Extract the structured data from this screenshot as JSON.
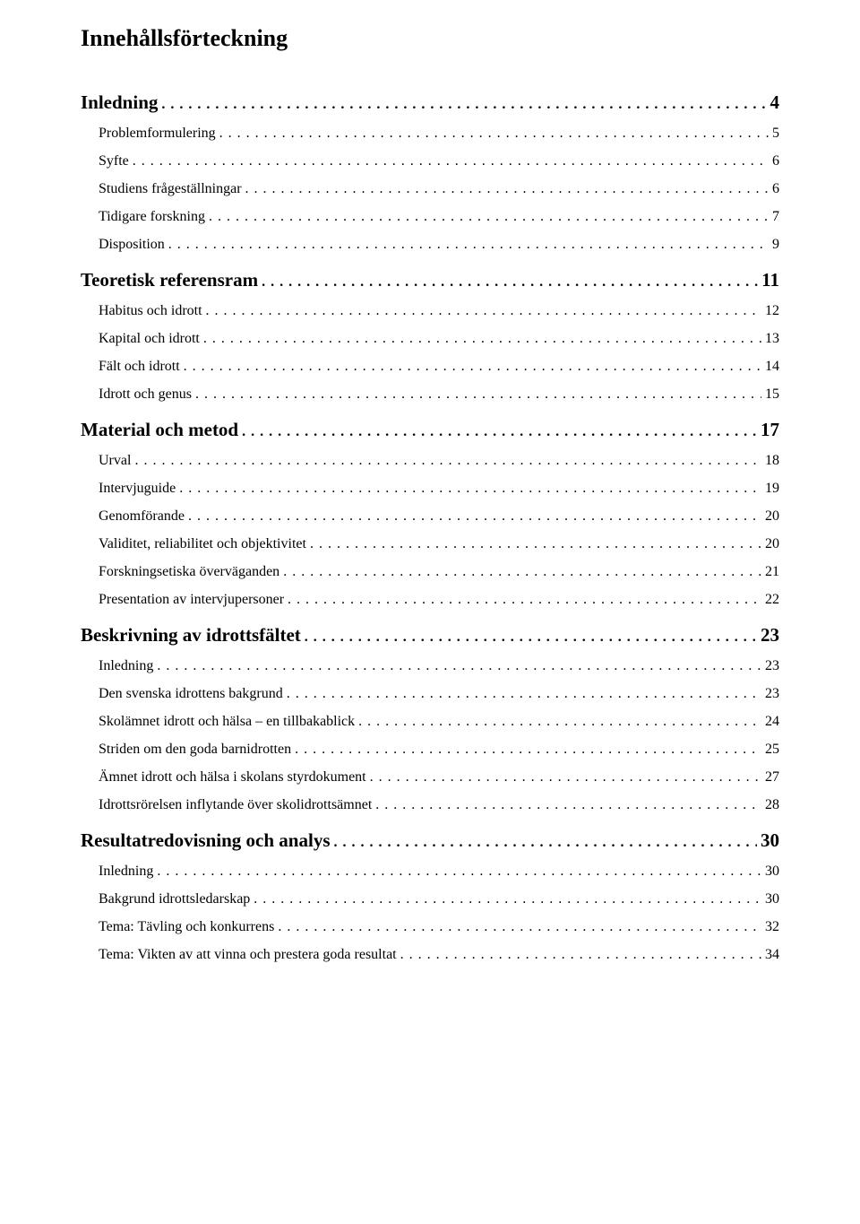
{
  "title": "Innehållsförteckning",
  "typography": {
    "title_fontsize": 26,
    "lvl1_fontsize": 21,
    "lvl2_fontsize": 16,
    "font_family": "Times New Roman",
    "text_color": "#000000",
    "background_color": "#ffffff"
  },
  "entries": [
    {
      "label": "Inledning",
      "page": "4",
      "level": 1
    },
    {
      "label": "Problemformulering",
      "page": "5",
      "level": 2
    },
    {
      "label": "Syfte",
      "page": "6",
      "level": 2
    },
    {
      "label": "Studiens frågeställningar",
      "page": "6",
      "level": 2
    },
    {
      "label": "Tidigare forskning",
      "page": "7",
      "level": 2
    },
    {
      "label": "Disposition",
      "page": "9",
      "level": 2
    },
    {
      "label": "Teoretisk referensram",
      "page": "11",
      "level": 1
    },
    {
      "label": "Habitus och idrott",
      "page": "12",
      "level": 2
    },
    {
      "label": "Kapital och idrott",
      "page": "13",
      "level": 2
    },
    {
      "label": "Fält och idrott",
      "page": "14",
      "level": 2
    },
    {
      "label": "Idrott och genus",
      "page": "15",
      "level": 2
    },
    {
      "label": "Material och metod",
      "page": "17",
      "level": 1
    },
    {
      "label": "Urval",
      "page": "18",
      "level": 2
    },
    {
      "label": "Intervjuguide",
      "page": "19",
      "level": 2
    },
    {
      "label": "Genomförande",
      "page": "20",
      "level": 2
    },
    {
      "label": "Validitet, reliabilitet och objektivitet",
      "page": "20",
      "level": 2
    },
    {
      "label": "Forskningsetiska överväganden",
      "page": "21",
      "level": 2
    },
    {
      "label": "Presentation av intervjupersoner",
      "page": "22",
      "level": 2
    },
    {
      "label": "Beskrivning av idrottsfältet",
      "page": "23",
      "level": 1
    },
    {
      "label": "Inledning",
      "page": "23",
      "level": 2
    },
    {
      "label": "Den svenska idrottens bakgrund",
      "page": "23",
      "level": 2
    },
    {
      "label": "Skolämnet idrott och hälsa – en tillbakablick",
      "page": "24",
      "level": 2
    },
    {
      "label": "Striden om den goda barnidrotten",
      "page": "25",
      "level": 2
    },
    {
      "label": "Ämnet idrott och hälsa i skolans styrdokument",
      "page": "27",
      "level": 2
    },
    {
      "label": "Idrottsrörelsen inflytande över skolidrottsämnet",
      "page": "28",
      "level": 2
    },
    {
      "label": "Resultatredovisning och analys",
      "page": "30",
      "level": 1
    },
    {
      "label": "Inledning",
      "page": "30",
      "level": 2
    },
    {
      "label": "Bakgrund idrottsledarskap",
      "page": "30",
      "level": 2
    },
    {
      "label": "Tema: Tävling och konkurrens",
      "page": "32",
      "level": 2
    },
    {
      "label": "Tema: Vikten av att vinna och prestera goda resultat",
      "page": "34",
      "level": 2
    }
  ]
}
